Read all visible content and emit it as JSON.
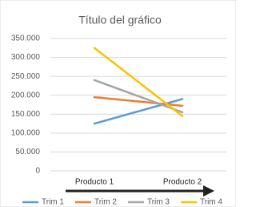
{
  "chart_data": {
    "type": "line",
    "title": "Título del gráfico",
    "categories": [
      "Producto 1",
      "Producto 2"
    ],
    "series": [
      {
        "name": "Trim 1",
        "color": "#5b9bd5",
        "values": [
          125000,
          190000
        ]
      },
      {
        "name": "Trim 2",
        "color": "#ed7d31",
        "values": [
          195000,
          172000
        ]
      },
      {
        "name": "Trim 3",
        "color": "#a5a5a5",
        "values": [
          240000,
          155000
        ]
      },
      {
        "name": "Trim 4",
        "color": "#ffc000",
        "values": [
          325000,
          145000
        ]
      }
    ],
    "ylim": [
      0,
      350000
    ],
    "yticks": [
      0,
      {
        "value": 50000,
        "label": "50.000"
      },
      {
        "value": 100000,
        "label": "100.000"
      },
      {
        "value": 150000,
        "label": "150.000"
      },
      {
        "value": 200000,
        "label": "200.000"
      },
      {
        "value": 250000,
        "label": "250.000"
      },
      {
        "value": 300000,
        "label": "300.000"
      },
      {
        "value": 350000,
        "label": "350.000"
      }
    ],
    "grid": true,
    "legend": "bottom"
  }
}
